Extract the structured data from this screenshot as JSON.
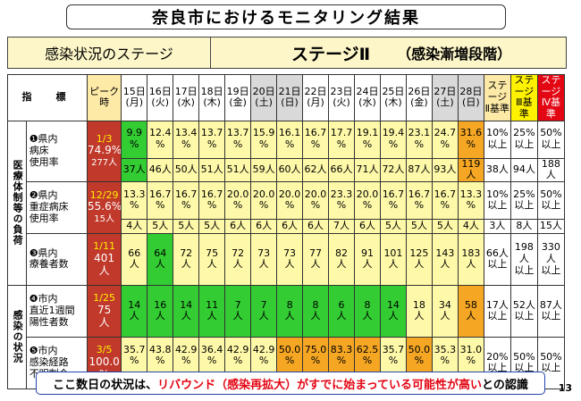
{
  "title": "奈良市におけるモニタリング結果",
  "stage": {
    "label": "感染状況のステージ",
    "value": "ステージⅡ",
    "desc": "（感染漸増段階）"
  },
  "header": {
    "indicator": "指　標",
    "peak": "ピーク時",
    "days": [
      {
        "d": "15日",
        "w": "(月)",
        "t": "n"
      },
      {
        "d": "16日",
        "w": "(火)",
        "t": "n"
      },
      {
        "d": "17日",
        "w": "(水)",
        "t": "n"
      },
      {
        "d": "18日",
        "w": "(木)",
        "t": "n"
      },
      {
        "d": "19日",
        "w": "(金)",
        "t": "n"
      },
      {
        "d": "20日",
        "w": "(土)",
        "t": "sat"
      },
      {
        "d": "21日",
        "w": "(日)",
        "t": "sun"
      },
      {
        "d": "22日",
        "w": "(月)",
        "t": "n"
      },
      {
        "d": "23日",
        "w": "(火)",
        "t": "n"
      },
      {
        "d": "24日",
        "w": "(水)",
        "t": "n"
      },
      {
        "d": "25日",
        "w": "(木)",
        "t": "n"
      },
      {
        "d": "26日",
        "w": "(金)",
        "t": "n"
      },
      {
        "d": "27日",
        "w": "(土)",
        "t": "sat"
      },
      {
        "d": "28日",
        "w": "(日)",
        "t": "sun"
      }
    ],
    "s2": [
      "ステージ",
      "Ⅱ基準"
    ],
    "s3": [
      "ステージ",
      "Ⅲ基準"
    ],
    "s4": [
      "ステージ",
      "Ⅳ基準"
    ]
  },
  "groups": {
    "medical": "医療体制等の負荷",
    "infection": "感染の状況"
  },
  "rows": [
    {
      "label": [
        "❶県内",
        "病床",
        "使用率"
      ],
      "peak": {
        "date": "1/3",
        "v": "74.9%",
        "s": "277人"
      },
      "cells": [
        {
          "v": "9.9",
          "u": "%",
          "c": "g"
        },
        {
          "v": "12.4",
          "u": "%",
          "c": "y"
        },
        {
          "v": "13.4",
          "u": "%",
          "c": "y"
        },
        {
          "v": "13.7",
          "u": "%",
          "c": "y"
        },
        {
          "v": "13.7",
          "u": "%",
          "c": "y"
        },
        {
          "v": "15.9",
          "u": "%",
          "c": "y"
        },
        {
          "v": "16.1",
          "u": "%",
          "c": "y"
        },
        {
          "v": "16.7",
          "u": "%",
          "c": "y"
        },
        {
          "v": "17.7",
          "u": "%",
          "c": "y"
        },
        {
          "v": "19.1",
          "u": "%",
          "c": "y"
        },
        {
          "v": "19.4",
          "u": "%",
          "c": "y"
        },
        {
          "v": "23.1",
          "u": "%",
          "c": "y"
        },
        {
          "v": "24.7",
          "u": "%",
          "c": "y"
        },
        {
          "v": "31.6",
          "u": "%",
          "c": "o"
        }
      ],
      "subs": [
        "37人",
        "46人",
        "50人",
        "51人",
        "51人",
        "59人",
        "60人",
        "62人",
        "66人",
        "71人",
        "72人",
        "87人",
        "93人",
        "119人"
      ],
      "th": [
        [
          "10%",
          "以上"
        ],
        [
          "25%",
          "以上"
        ],
        [
          "50%",
          "以上"
        ]
      ],
      "thsub": [
        "38人",
        "94人",
        "188人"
      ]
    },
    {
      "label": [
        "❷県内",
        "重症病床",
        "使用率"
      ],
      "peak": {
        "date": "12/29",
        "v": "55.6%",
        "s": "15人"
      },
      "cells": [
        {
          "v": "13.3",
          "u": "%",
          "c": "y"
        },
        {
          "v": "16.7",
          "u": "%",
          "c": "y"
        },
        {
          "v": "16.7",
          "u": "%",
          "c": "y"
        },
        {
          "v": "16.7",
          "u": "%",
          "c": "y"
        },
        {
          "v": "20.0",
          "u": "%",
          "c": "y"
        },
        {
          "v": "20.0",
          "u": "%",
          "c": "y"
        },
        {
          "v": "20.0",
          "u": "%",
          "c": "y"
        },
        {
          "v": "20.0",
          "u": "%",
          "c": "y"
        },
        {
          "v": "23.3",
          "u": "%",
          "c": "y"
        },
        {
          "v": "20.0",
          "u": "%",
          "c": "y"
        },
        {
          "v": "16.7",
          "u": "%",
          "c": "y"
        },
        {
          "v": "16.7",
          "u": "%",
          "c": "y"
        },
        {
          "v": "16.7",
          "u": "%",
          "c": "y"
        },
        {
          "v": "13.3",
          "u": "%",
          "c": "y"
        }
      ],
      "subs": [
        "4人",
        "5人",
        "5人",
        "5人",
        "6人",
        "6人",
        "6人",
        "6人",
        "7人",
        "6人",
        "5人",
        "5人",
        "5人",
        "4人"
      ],
      "th": [
        [
          "10%",
          "以上"
        ],
        [
          "25%",
          "以上"
        ],
        [
          "50%",
          "以上"
        ]
      ],
      "thsub": [
        "3人",
        "8人",
        "15人"
      ]
    },
    {
      "label": [
        "❸県内",
        "療養者数"
      ],
      "peak": {
        "date": "1/11",
        "v": "401",
        "u": "人"
      },
      "cells": [
        {
          "v": "66",
          "u": "人",
          "c": "y"
        },
        {
          "v": "64",
          "u": "人",
          "c": "g"
        },
        {
          "v": "72",
          "u": "人",
          "c": "y"
        },
        {
          "v": "75",
          "u": "人",
          "c": "y"
        },
        {
          "v": "72",
          "u": "人",
          "c": "y"
        },
        {
          "v": "73",
          "u": "人",
          "c": "y"
        },
        {
          "v": "73",
          "u": "人",
          "c": "y"
        },
        {
          "v": "77",
          "u": "人",
          "c": "y"
        },
        {
          "v": "82",
          "u": "人",
          "c": "y"
        },
        {
          "v": "91",
          "u": "人",
          "c": "y"
        },
        {
          "v": "101",
          "u": "人",
          "c": "y"
        },
        {
          "v": "125",
          "u": "人",
          "c": "y"
        },
        {
          "v": "143",
          "u": "人",
          "c": "y"
        },
        {
          "v": "183",
          "u": "人",
          "c": "y"
        }
      ],
      "th": [
        [
          "66人",
          "以上"
        ],
        [
          "198人",
          "以上"
        ],
        [
          "330人",
          "以上"
        ]
      ]
    },
    {
      "label": [
        "❹市内",
        "直近1週間",
        "陽性者数"
      ],
      "peak": {
        "date": "1/25",
        "v": "75",
        "u": "人"
      },
      "cells": [
        {
          "v": "14",
          "u": "人",
          "c": "g"
        },
        {
          "v": "16",
          "u": "人",
          "c": "g"
        },
        {
          "v": "14",
          "u": "人",
          "c": "g"
        },
        {
          "v": "11",
          "u": "人",
          "c": "g"
        },
        {
          "v": "7",
          "u": "人",
          "c": "g"
        },
        {
          "v": "7",
          "u": "人",
          "c": "g"
        },
        {
          "v": "8",
          "u": "人",
          "c": "g"
        },
        {
          "v": "8",
          "u": "人",
          "c": "g"
        },
        {
          "v": "6",
          "u": "人",
          "c": "g"
        },
        {
          "v": "8",
          "u": "人",
          "c": "g"
        },
        {
          "v": "14",
          "u": "人",
          "c": "g"
        },
        {
          "v": "18",
          "u": "人",
          "c": "y"
        },
        {
          "v": "34",
          "u": "人",
          "c": "y"
        },
        {
          "v": "58",
          "u": "人",
          "c": "o"
        }
      ],
      "th": [
        [
          "17人",
          "以上"
        ],
        [
          "52人",
          "以上"
        ],
        [
          "87人",
          "以上"
        ]
      ]
    },
    {
      "label": [
        "❺市内",
        "感染経路",
        "不明割合"
      ],
      "peak": {
        "date": "3/5",
        "v": "100.0",
        "u": "%"
      },
      "cells": [
        {
          "v": "35.7",
          "u": "%",
          "c": "y"
        },
        {
          "v": "43.8",
          "u": "%",
          "c": "y"
        },
        {
          "v": "42.9",
          "u": "%",
          "c": "y"
        },
        {
          "v": "36.4",
          "u": "%",
          "c": "y"
        },
        {
          "v": "42.9",
          "u": "%",
          "c": "y"
        },
        {
          "v": "42.9",
          "u": "%",
          "c": "y"
        },
        {
          "v": "50.0",
          "u": "%",
          "c": "o"
        },
        {
          "v": "75.0",
          "u": "%",
          "c": "o"
        },
        {
          "v": "83.3",
          "u": "%",
          "c": "o"
        },
        {
          "v": "62.5",
          "u": "%",
          "c": "o"
        },
        {
          "v": "35.7",
          "u": "%",
          "c": "y"
        },
        {
          "v": "50.0",
          "u": "%",
          "c": "o"
        },
        {
          "v": "35.3",
          "u": "%",
          "c": "y"
        },
        {
          "v": "31.0",
          "u": "%",
          "c": "y"
        }
      ],
      "subs": [
        "5人",
        "7人",
        "6人",
        "4人",
        "3人",
        "3人",
        "4人",
        "6人",
        "5人",
        "5人",
        "5人",
        "9人",
        "12人",
        "18人"
      ],
      "th": [
        [
          "20%",
          "以上"
        ],
        [
          "50%",
          "以上"
        ],
        [
          "50%",
          "以上"
        ]
      ]
    }
  ],
  "banner": {
    "a": "ここ数日の状況は、",
    "b": "リバウンド（感染再拡大）がすでに始まっている可能性が高い",
    "c": "との認識"
  },
  "page_number": "13",
  "colors": {
    "green": "#33cc33",
    "yellow": "#fef9a8",
    "orange": "#f5a623",
    "red": "#c0392b",
    "stage4": "#e30613"
  }
}
